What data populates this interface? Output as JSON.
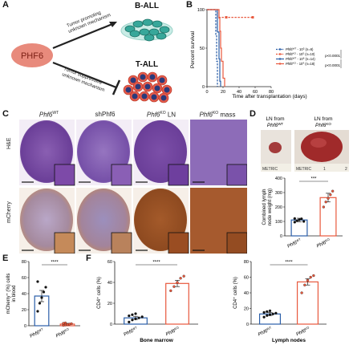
{
  "panels": {
    "A": {
      "label": "A",
      "center_node": "PHF6",
      "top_arrow_text": [
        "Tumor promoting",
        "unknown mechanism"
      ],
      "bottom_arrow_text": [
        "Tumor suppressive",
        "unknown mechanism"
      ],
      "top_target": "B-ALL",
      "bottom_target": "T-ALL",
      "colors": {
        "phf6": "#e88a7c",
        "ball_cell": "#37a79a",
        "tall_cell": "#e55a4a",
        "tall_nucleus": "#2b3a7a"
      }
    },
    "B": {
      "label": "B",
      "legend": [
        {
          "gene": "Phf6",
          "sup": "WT",
          "dose": " - 10",
          "dose_sup": "5",
          "n": " (n=6)",
          "color": "#2a5ea8"
        },
        {
          "gene": "Phf6",
          "sup": "KO",
          "dose": " - 10",
          "dose_sup": "5",
          "n": " (n=10)",
          "color": "#e8583c"
        },
        {
          "gene": "Phf6",
          "sup": "WT",
          "dose": " - 10",
          "dose_sup": "4",
          "n": " (n=14)",
          "color": "#2a5ea8"
        },
        {
          "gene": "Phf6",
          "sup": "KO",
          "dose": " - 10",
          "dose_sup": "4",
          "n": " (n=18)",
          "color": "#e8583c"
        }
      ],
      "pvalues": [
        "p<0.0001",
        "p<0.0001"
      ]
    },
    "C": {
      "label": "C",
      "columns": [
        {
          "gene": "Phf6",
          "sup": "WT",
          "suffix": ""
        },
        {
          "gene": "shPhf6",
          "sup": "",
          "suffix": ""
        },
        {
          "gene": "Phf6",
          "sup": "KO",
          "suffix": " LN"
        },
        {
          "gene": "Phf6",
          "sup": "KO",
          "suffix": " mass"
        }
      ],
      "rows": [
        "H&E",
        "mCherry"
      ]
    },
    "D": {
      "label": "D",
      "photo_labels": [
        {
          "prefix": "LN from",
          "gene": "Phf6",
          "sup": "WT"
        },
        {
          "prefix": "LN from",
          "gene": "Phf6",
          "sup": "KO"
        }
      ],
      "ruler_text": [
        "METRIC",
        "METRIC",
        "1",
        "2"
      ],
      "significance": "***"
    },
    "E": {
      "label": "E",
      "significance": "****"
    },
    "F": {
      "label": "F",
      "significance": [
        "****",
        "****"
      ],
      "subtitles": [
        "Bone marrow",
        "Lymph nodes"
      ]
    }
  },
  "chart_data": [
    {
      "panel": "B",
      "type": "line",
      "title": "",
      "xlabel": "Time after transplantation (days)",
      "ylabel": "Percent survival",
      "xlim": [
        0,
        80
      ],
      "ylim": [
        0,
        100
      ],
      "xticks": [
        0,
        20,
        40,
        60,
        80
      ],
      "yticks": [
        0,
        50,
        100
      ],
      "series": [
        {
          "name": "Phf6WT - 10^5 (n=6)",
          "color": "#2a5ea8",
          "dash": true,
          "points": [
            [
              0,
              100
            ],
            [
              11,
              100
            ],
            [
              11,
              67
            ],
            [
              12,
              67
            ],
            [
              12,
              33
            ],
            [
              13,
              33
            ],
            [
              13,
              0
            ]
          ]
        },
        {
          "name": "Phf6KO - 10^5 (n=10)",
          "color": "#e8583c",
          "dash": true,
          "points": [
            [
              0,
              100
            ],
            [
              13,
              100
            ],
            [
              13,
              90
            ],
            [
              57,
              90
            ]
          ]
        },
        {
          "name": "Phf6WT - 10^4 (n=14)",
          "color": "#2a5ea8",
          "dash": false,
          "points": [
            [
              0,
              100
            ],
            [
              13,
              100
            ],
            [
              13,
              71
            ],
            [
              15,
              71
            ],
            [
              15,
              36
            ],
            [
              16,
              36
            ],
            [
              16,
              7
            ],
            [
              17,
              7
            ],
            [
              17,
              0
            ]
          ]
        },
        {
          "name": "Phf6KO - 10^4 (n=18)",
          "color": "#e8583c",
          "dash": false,
          "points": [
            [
              0,
              100
            ],
            [
              15,
              100
            ],
            [
              15,
              89
            ],
            [
              16,
              89
            ],
            [
              16,
              72
            ],
            [
              17,
              72
            ],
            [
              17,
              50
            ],
            [
              18,
              50
            ],
            [
              18,
              33
            ],
            [
              20,
              33
            ],
            [
              20,
              11
            ],
            [
              22,
              11
            ],
            [
              22,
              0
            ]
          ]
        }
      ]
    },
    {
      "panel": "D",
      "type": "bar",
      "ylabel": [
        "Combined lymph",
        "node weight (mg)"
      ],
      "ylim": [
        0,
        400
      ],
      "yticks": [
        0,
        100,
        200,
        300,
        400
      ],
      "categories": [
        {
          "gene": "Phf6",
          "sup": "WT"
        },
        {
          "gene": "Phf6",
          "sup": "KO"
        }
      ],
      "values": [
        110,
        265
      ],
      "errors": [
        12,
        30
      ],
      "points": [
        [
          95,
          105,
          112,
          118,
          100,
          120
        ],
        [
          200,
          235,
          260,
          285,
          310
        ]
      ],
      "colors": [
        "#2a5ea8",
        "#e8583c"
      ]
    },
    {
      "panel": "E",
      "type": "bar",
      "ylabel": [
        "mCherry⁺ (%) cells",
        "in blood"
      ],
      "ylim": [
        0,
        80
      ],
      "yticks": [
        0,
        20,
        40,
        60,
        80
      ],
      "categories": [
        {
          "gene": "Phf6",
          "sup": "WT"
        },
        {
          "gene": "Phf6",
          "sup": "KO"
        }
      ],
      "values": [
        37,
        2
      ],
      "errors": [
        7,
        1
      ],
      "points": [
        [
          18,
          28,
          35,
          42,
          48,
          55
        ],
        [
          0.5,
          1,
          1.5,
          2,
          2.5,
          3,
          3.5
        ]
      ],
      "colors": [
        "#2a5ea8",
        "#e8583c"
      ]
    },
    {
      "panel": "F1",
      "type": "bar",
      "xlabel": "Bone marrow",
      "ylabel": "CD4⁺ cells (%)",
      "ylim": [
        0,
        60
      ],
      "yticks": [
        0,
        20,
        40,
        60
      ],
      "categories": [
        {
          "gene": "Phf6",
          "sup": "WT"
        },
        {
          "gene": "Phf6",
          "sup": "KO"
        }
      ],
      "values": [
        6,
        39
      ],
      "errors": [
        1.5,
        3
      ],
      "points": [
        [
          2,
          4,
          5,
          6,
          7,
          8,
          9,
          10
        ],
        [
          32,
          36,
          40,
          44,
          46
        ]
      ],
      "colors": [
        "#2a5ea8",
        "#e8583c"
      ]
    },
    {
      "panel": "F2",
      "type": "bar",
      "xlabel": "Lymph nodes",
      "ylabel": "CD4⁺ cells (%)",
      "ylim": [
        0,
        80
      ],
      "yticks": [
        0,
        20,
        40,
        60,
        80
      ],
      "categories": [
        {
          "gene": "Phf6",
          "sup": "WT"
        },
        {
          "gene": "Phf6",
          "sup": "KO"
        }
      ],
      "values": [
        13,
        54
      ],
      "errors": [
        2,
        4
      ],
      "points": [
        [
          9,
          11,
          12,
          13,
          14,
          15,
          16,
          17
        ],
        [
          40,
          50,
          56,
          60,
          62
        ]
      ],
      "colors": [
        "#2a5ea8",
        "#e8583c"
      ]
    }
  ]
}
